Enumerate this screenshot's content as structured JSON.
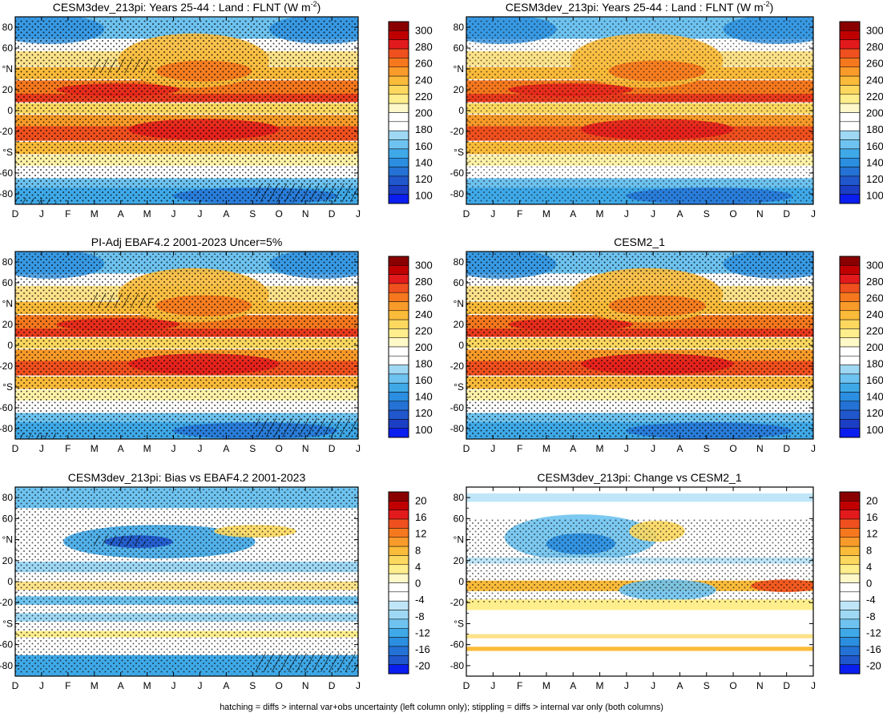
{
  "caption": "hatching = diffs > internal var+obs uncertainty (left column only); stippling = diffs > internal var only (both columns)",
  "chart_data": [
    {
      "type": "heatmap",
      "title_main": "CESM3dev_213pi: Years 25-44 : Land : FLNT (W m",
      "title_sup": "-2",
      "title_end": ")",
      "x_ticks": [
        "D",
        "J",
        "F",
        "M",
        "A",
        "M",
        "J",
        "J",
        "A",
        "S",
        "O",
        "N",
        "D",
        "J"
      ],
      "y_ticks": [
        "80",
        "60",
        "°N",
        "20",
        "0",
        "-20",
        "°S",
        "-60",
        "-80"
      ],
      "y_tick_values": [
        80,
        60,
        40,
        20,
        0,
        -20,
        -40,
        -60,
        -80
      ],
      "ylim": [
        -90,
        90
      ],
      "colorbar_labels": [
        "300",
        "280",
        "260",
        "240",
        "220",
        "200",
        "180",
        "160",
        "140",
        "120",
        "100"
      ],
      "colorbar_values": [
        300,
        280,
        260,
        240,
        220,
        200,
        180,
        160,
        140,
        120,
        100
      ],
      "hatching": true
    },
    {
      "type": "heatmap",
      "title_main": "CESM3dev_213pi: Years 25-44 : Land : FLNT (W m",
      "title_sup": "-2",
      "title_end": ")",
      "x_ticks": [
        "D",
        "J",
        "F",
        "M",
        "A",
        "M",
        "J",
        "J",
        "A",
        "S",
        "O",
        "N",
        "D",
        "J"
      ],
      "y_ticks": [
        "80",
        "60",
        "°N",
        "20",
        "0",
        "-20",
        "°S",
        "-60",
        "-80"
      ],
      "y_tick_values": [
        80,
        60,
        40,
        20,
        0,
        -20,
        -40,
        -60,
        -80
      ],
      "ylim": [
        -90,
        90
      ],
      "colorbar_labels": [
        "300",
        "280",
        "260",
        "240",
        "220",
        "200",
        "180",
        "160",
        "140",
        "120",
        "100"
      ],
      "colorbar_values": [
        300,
        280,
        260,
        240,
        220,
        200,
        180,
        160,
        140,
        120,
        100
      ],
      "hatching": false
    },
    {
      "type": "heatmap",
      "title_main": "PI-Adj EBAF4.2 2001-2023 Uncer=5%",
      "title_sup": "",
      "title_end": "",
      "x_ticks": [
        "D",
        "J",
        "F",
        "M",
        "A",
        "M",
        "J",
        "J",
        "A",
        "S",
        "O",
        "N",
        "D",
        "J"
      ],
      "y_ticks": [
        "80",
        "60",
        "°N",
        "20",
        "0",
        "-20",
        "°S",
        "-60",
        "-80"
      ],
      "y_tick_values": [
        80,
        60,
        40,
        20,
        0,
        -20,
        -40,
        -60,
        -80
      ],
      "ylim": [
        -90,
        90
      ],
      "colorbar_labels": [
        "300",
        "280",
        "260",
        "240",
        "220",
        "200",
        "180",
        "160",
        "140",
        "120",
        "100"
      ],
      "colorbar_values": [
        300,
        280,
        260,
        240,
        220,
        200,
        180,
        160,
        140,
        120,
        100
      ],
      "hatching": true
    },
    {
      "type": "heatmap",
      "title_main": "CESM2_1",
      "title_sup": "",
      "title_end": "",
      "x_ticks": [
        "D",
        "J",
        "F",
        "M",
        "A",
        "M",
        "J",
        "J",
        "A",
        "S",
        "O",
        "N",
        "D",
        "J"
      ],
      "y_ticks": [
        "80",
        "60",
        "°N",
        "20",
        "0",
        "-20",
        "°S",
        "-60",
        "-80"
      ],
      "y_tick_values": [
        80,
        60,
        40,
        20,
        0,
        -20,
        -40,
        -60,
        -80
      ],
      "ylim": [
        -90,
        90
      ],
      "colorbar_labels": [
        "300",
        "280",
        "260",
        "240",
        "220",
        "200",
        "180",
        "160",
        "140",
        "120",
        "100"
      ],
      "colorbar_values": [
        300,
        280,
        260,
        240,
        220,
        200,
        180,
        160,
        140,
        120,
        100
      ],
      "hatching": false
    },
    {
      "type": "heatmap",
      "title_main": "CESM3dev_213pi: Bias vs EBAF4.2 2001-2023",
      "title_sup": "",
      "title_end": "",
      "x_ticks": [
        "D",
        "J",
        "F",
        "M",
        "A",
        "M",
        "J",
        "J",
        "A",
        "S",
        "O",
        "N",
        "D",
        "J"
      ],
      "y_ticks": [
        "80",
        "60",
        "°N",
        "20",
        "0",
        "-20",
        "°S",
        "-60",
        "-80"
      ],
      "y_tick_values": [
        80,
        60,
        40,
        20,
        0,
        -20,
        -40,
        -60,
        -80
      ],
      "ylim": [
        -90,
        90
      ],
      "colorbar_labels": [
        "20",
        "16",
        "12",
        "8",
        "4",
        "0",
        "-4",
        "-8",
        "-12",
        "-16",
        "-20"
      ],
      "colorbar_values": [
        20,
        16,
        12,
        8,
        4,
        0,
        -4,
        -8,
        -12,
        -16,
        -20
      ],
      "hatching": true
    },
    {
      "type": "heatmap",
      "title_main": "CESM3dev_213pi: Change vs CESM2_1",
      "title_sup": "",
      "title_end": "",
      "x_ticks": [
        "D",
        "J",
        "F",
        "M",
        "A",
        "M",
        "J",
        "J",
        "A",
        "S",
        "O",
        "N",
        "D",
        "J"
      ],
      "y_ticks": [
        "80",
        "60",
        "°N",
        "20",
        "0",
        "-20",
        "°S",
        "-60",
        "-80"
      ],
      "y_tick_values": [
        80,
        60,
        40,
        20,
        0,
        -20,
        -40,
        -60,
        -80
      ],
      "ylim": [
        -90,
        90
      ],
      "colorbar_labels": [
        "20",
        "16",
        "12",
        "8",
        "4",
        "0",
        "-4",
        "-8",
        "-12",
        "-16",
        "-20"
      ],
      "colorbar_values": [
        20,
        16,
        12,
        8,
        4,
        0,
        -4,
        -8,
        -12,
        -16,
        -20
      ],
      "hatching": false
    }
  ]
}
